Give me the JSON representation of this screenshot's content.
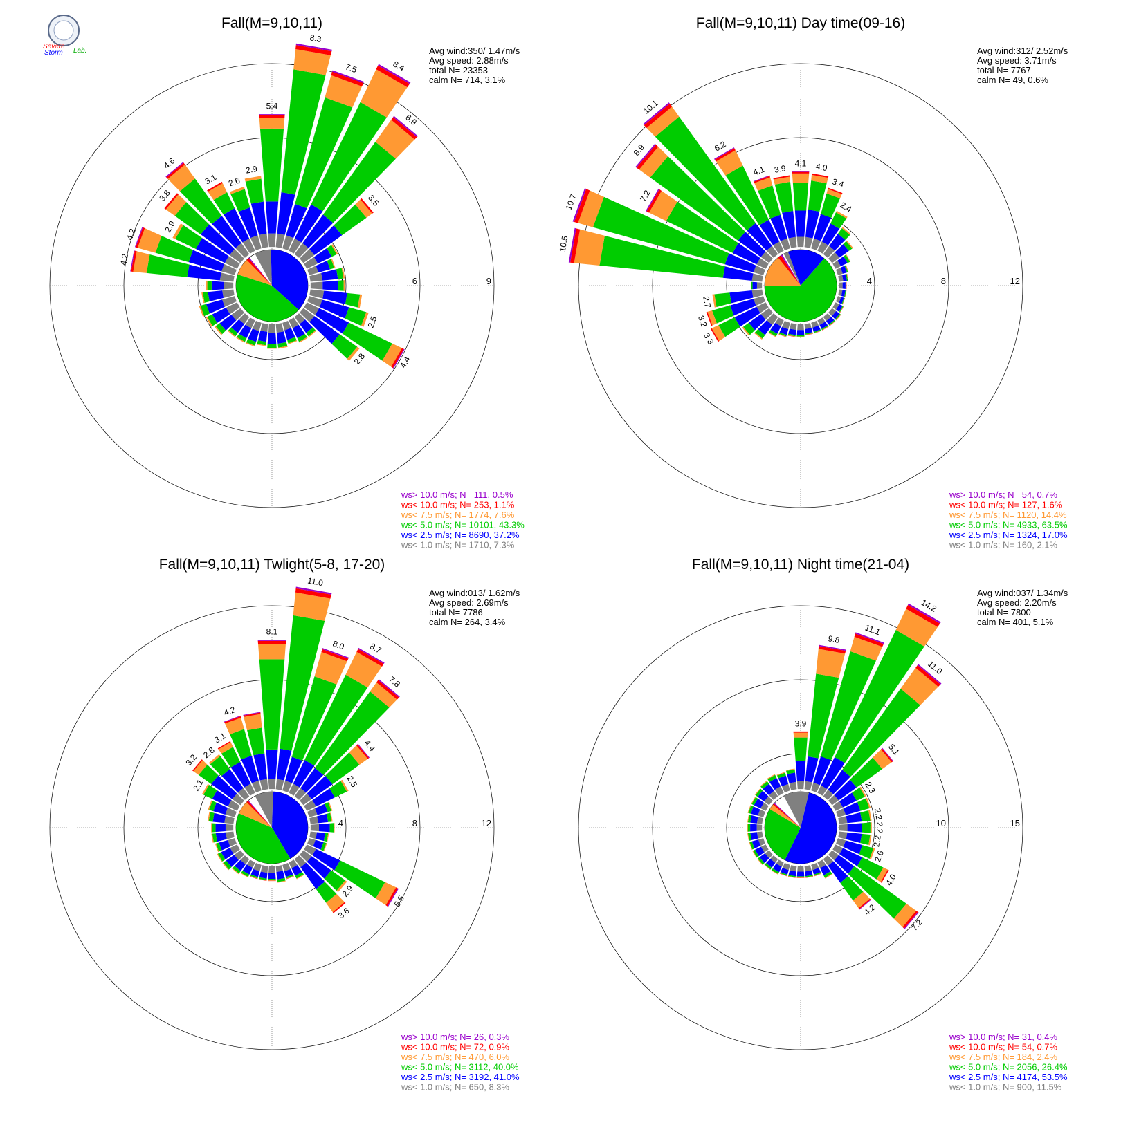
{
  "logo": {
    "text_top": "Severe",
    "text_mid": "Storm",
    "text_lab": "Lab."
  },
  "legend_colors": [
    "#9900cc",
    "#ff0000",
    "#ff9933",
    "#00cc00",
    "#0000ff",
    "#808080"
  ],
  "chart_data": [
    {
      "type": "windrose",
      "title": "Fall(M=9,10,11)",
      "stats": [
        "Avg wind:350/ 1.47m/s",
        "Avg speed: 2.88m/s",
        "total N=      23353",
        "calm N=    714,   3.1%"
      ],
      "rmax": 9,
      "rings": [
        "3",
        "6",
        "9"
      ],
      "legend": [
        "ws> 10.0 m/s; N=   111,  0.5%",
        "ws< 10.0 m/s; N=   253,  1.1%",
        "ws<  7.5 m/s; N=  1774,  7.6%",
        "ws<  5.0 m/s; N= 10101, 43.3%",
        "ws<  2.5 m/s; N=  8690, 37.2%",
        "ws<  1.0 m/s; N=  1710,  7.3%"
      ],
      "pie": [
        7.3,
        37.2,
        43.3,
        7.6,
        1.1,
        0.5
      ],
      "bars": [
        {
          "dir": 0,
          "total": 5.4,
          "label": "5.4"
        },
        {
          "dir": 10,
          "total": 8.3,
          "label": "8.3"
        },
        {
          "dir": 20,
          "total": 7.5,
          "label": "7.5"
        },
        {
          "dir": 30,
          "total": 8.4,
          "label": "8.4"
        },
        {
          "dir": 40,
          "total": 6.9,
          "label": "6.9"
        },
        {
          "dir": 50,
          "total": 3.5,
          "label": "3.5"
        },
        {
          "dir": 60,
          "total": 1.4,
          "label": ""
        },
        {
          "dir": 70,
          "total": 1.1,
          "label": ""
        },
        {
          "dir": 80,
          "total": 1.4,
          "label": ""
        },
        {
          "dir": 90,
          "total": 1.4,
          "label": ""
        },
        {
          "dir": 100,
          "total": 2.1,
          "label": ""
        },
        {
          "dir": 110,
          "total": 2.5,
          "label": "2.5"
        },
        {
          "dir": 120,
          "total": 4.4,
          "label": "4.4"
        },
        {
          "dir": 130,
          "total": 2.8,
          "label": "2.8"
        },
        {
          "dir": 140,
          "total": 1.0,
          "label": ""
        },
        {
          "dir": 150,
          "total": 1.0,
          "label": ""
        },
        {
          "dir": 160,
          "total": 0.9,
          "label": ""
        },
        {
          "dir": 170,
          "total": 1.0,
          "label": ""
        },
        {
          "dir": 180,
          "total": 1.0,
          "label": ""
        },
        {
          "dir": 190,
          "total": 0.9,
          "label": ""
        },
        {
          "dir": 200,
          "total": 1.0,
          "label": ""
        },
        {
          "dir": 210,
          "total": 1.0,
          "label": ""
        },
        {
          "dir": 220,
          "total": 1.0,
          "label": ""
        },
        {
          "dir": 230,
          "total": 1.3,
          "label": ""
        },
        {
          "dir": 240,
          "total": 1.4,
          "label": ""
        },
        {
          "dir": 250,
          "total": 1.5,
          "label": ""
        },
        {
          "dir": 260,
          "total": 1.3,
          "label": ""
        },
        {
          "dir": 270,
          "total": 1.1,
          "label": ""
        },
        {
          "dir": 280,
          "total": 4.2,
          "label": "4.2"
        },
        {
          "dir": 290,
          "total": 4.2,
          "label": "4.2"
        },
        {
          "dir": 300,
          "total": 2.9,
          "label": "2.9"
        },
        {
          "dir": 310,
          "total": 3.8,
          "label": "3.8"
        },
        {
          "dir": 320,
          "total": 4.6,
          "label": "4.6"
        },
        {
          "dir": 330,
          "total": 3.1,
          "label": "3.1"
        },
        {
          "dir": 340,
          "total": 2.6,
          "label": "2.6"
        },
        {
          "dir": 350,
          "total": 2.9,
          "label": "2.9"
        }
      ]
    },
    {
      "type": "windrose",
      "title": "Fall(M=9,10,11) Day time(09-16)",
      "stats": [
        "Avg wind:312/ 2.52m/s",
        "Avg speed: 3.71m/s",
        "total N=       7767",
        "calm N=     49,   0.6%"
      ],
      "rmax": 12,
      "rings": [
        "4",
        "8",
        "12"
      ],
      "legend": [
        "ws> 10.0 m/s; N=    54,  0.7%",
        "ws< 10.0 m/s; N=   127,  1.6%",
        "ws<  7.5 m/s; N=  1120, 14.4%",
        "ws<  5.0 m/s; N=  4933, 63.5%",
        "ws<  2.5 m/s; N=  1324, 17.0%",
        "ws<  1.0 m/s; N=   160,  2.1%"
      ],
      "pie": [
        2.1,
        17.0,
        63.5,
        14.4,
        1.6,
        0.7
      ],
      "bars": [
        {
          "dir": 0,
          "total": 4.1,
          "label": "4.1"
        },
        {
          "dir": 10,
          "total": 4.0,
          "label": "4.0"
        },
        {
          "dir": 20,
          "total": 3.4,
          "label": "3.4"
        },
        {
          "dir": 30,
          "total": 2.4,
          "label": "2.4"
        },
        {
          "dir": 40,
          "total": 1.8,
          "label": ""
        },
        {
          "dir": 50,
          "total": 1.4,
          "label": ""
        },
        {
          "dir": 60,
          "total": 0.9,
          "label": ""
        },
        {
          "dir": 70,
          "total": 0.6,
          "label": ""
        },
        {
          "dir": 80,
          "total": 0.5,
          "label": ""
        },
        {
          "dir": 90,
          "total": 0.4,
          "label": ""
        },
        {
          "dir": 100,
          "total": 0.4,
          "label": ""
        },
        {
          "dir": 110,
          "total": 0.4,
          "label": ""
        },
        {
          "dir": 120,
          "total": 0.5,
          "label": ""
        },
        {
          "dir": 130,
          "total": 0.6,
          "label": ""
        },
        {
          "dir": 140,
          "total": 0.6,
          "label": ""
        },
        {
          "dir": 150,
          "total": 0.6,
          "label": ""
        },
        {
          "dir": 160,
          "total": 0.6,
          "label": ""
        },
        {
          "dir": 170,
          "total": 0.6,
          "label": ""
        },
        {
          "dir": 180,
          "total": 0.7,
          "label": ""
        },
        {
          "dir": 190,
          "total": 0.7,
          "label": ""
        },
        {
          "dir": 200,
          "total": 0.8,
          "label": ""
        },
        {
          "dir": 210,
          "total": 1.0,
          "label": ""
        },
        {
          "dir": 220,
          "total": 1.5,
          "label": ""
        },
        {
          "dir": 230,
          "total": 1.8,
          "label": ""
        },
        {
          "dir": 240,
          "total": 3.3,
          "label": "3.3"
        },
        {
          "dir": 250,
          "total": 3.2,
          "label": "3.2"
        },
        {
          "dir": 260,
          "total": 2.7,
          "label": "2.7"
        },
        {
          "dir": 270,
          "total": 0.6,
          "label": ""
        },
        {
          "dir": 280,
          "total": 10.5,
          "label": "10.5"
        },
        {
          "dir": 290,
          "total": 10.7,
          "label": "10.7"
        },
        {
          "dir": 300,
          "total": 7.2,
          "label": "7.2"
        },
        {
          "dir": 310,
          "total": 8.9,
          "label": "8.9"
        },
        {
          "dir": 320,
          "total": 10.1,
          "label": "10.1"
        },
        {
          "dir": 330,
          "total": 6.2,
          "label": "6.2"
        },
        {
          "dir": 340,
          "total": 4.1,
          "label": "4.1"
        },
        {
          "dir": 350,
          "total": 3.9,
          "label": "3.9"
        }
      ]
    },
    {
      "type": "windrose",
      "title": "Fall(M=9,10,11) Twlight(5-8, 17-20)",
      "stats": [
        "Avg wind:013/ 1.62m/s",
        "Avg speed: 2.69m/s",
        "total N=       7786",
        "calm N=    264,   3.4%"
      ],
      "rmax": 12,
      "rings": [
        "4",
        "8",
        "12"
      ],
      "legend": [
        "ws> 10.0 m/s; N=    26,  0.3%",
        "ws< 10.0 m/s; N=    72,  0.9%",
        "ws<  7.5 m/s; N=   470,  6.0%",
        "ws<  5.0 m/s; N=  3112, 40.0%",
        "ws<  2.5 m/s; N=  3192, 41.0%",
        "ws<  1.0 m/s; N=   650,  8.3%"
      ],
      "pie": [
        8.3,
        41.0,
        40.0,
        6.0,
        0.9,
        0.3
      ],
      "bars": [
        {
          "dir": 0,
          "total": 8.1,
          "label": "8.1"
        },
        {
          "dir": 10,
          "total": 11.0,
          "label": "11.0"
        },
        {
          "dir": 20,
          "total": 8.0,
          "label": "8.0"
        },
        {
          "dir": 30,
          "total": 8.7,
          "label": "8.7"
        },
        {
          "dir": 40,
          "total": 7.8,
          "label": "7.8"
        },
        {
          "dir": 50,
          "total": 4.4,
          "label": "4.4"
        },
        {
          "dir": 60,
          "total": 2.5,
          "label": "2.5"
        },
        {
          "dir": 70,
          "total": 1.3,
          "label": ""
        },
        {
          "dir": 80,
          "total": 1.2,
          "label": ""
        },
        {
          "dir": 90,
          "total": 1.3,
          "label": ""
        },
        {
          "dir": 100,
          "total": 1.0,
          "label": ""
        },
        {
          "dir": 110,
          "total": 1.0,
          "label": ""
        },
        {
          "dir": 120,
          "total": 5.5,
          "label": "5.5"
        },
        {
          "dir": 130,
          "total": 2.9,
          "label": "2.9"
        },
        {
          "dir": 140,
          "total": 3.6,
          "label": "3.6"
        },
        {
          "dir": 150,
          "total": 1.0,
          "label": ""
        },
        {
          "dir": 160,
          "total": 0.8,
          "label": ""
        },
        {
          "dir": 170,
          "total": 0.9,
          "label": ""
        },
        {
          "dir": 180,
          "total": 0.8,
          "label": ""
        },
        {
          "dir": 190,
          "total": 0.8,
          "label": ""
        },
        {
          "dir": 200,
          "total": 0.8,
          "label": ""
        },
        {
          "dir": 210,
          "total": 0.9,
          "label": ""
        },
        {
          "dir": 220,
          "total": 1.0,
          "label": ""
        },
        {
          "dir": 230,
          "total": 1.2,
          "label": ""
        },
        {
          "dir": 240,
          "total": 1.2,
          "label": ""
        },
        {
          "dir": 250,
          "total": 1.1,
          "label": ""
        },
        {
          "dir": 260,
          "total": 1.2,
          "label": ""
        },
        {
          "dir": 270,
          "total": 1.2,
          "label": ""
        },
        {
          "dir": 280,
          "total": 1.4,
          "label": ""
        },
        {
          "dir": 290,
          "total": 1.5,
          "label": ""
        },
        {
          "dir": 300,
          "total": 2.1,
          "label": "2.1"
        },
        {
          "dir": 310,
          "total": 3.2,
          "label": "3.2"
        },
        {
          "dir": 320,
          "total": 2.8,
          "label": "2.8"
        },
        {
          "dir": 330,
          "total": 3.1,
          "label": "3.1"
        },
        {
          "dir": 340,
          "total": 4.2,
          "label": "4.2"
        },
        {
          "dir": 350,
          "total": 4.2,
          "label": ""
        }
      ]
    },
    {
      "type": "windrose",
      "title": "Fall(M=9,10,11) Night time(21-04)",
      "stats": [
        "Avg wind:037/ 1.34m/s",
        "Avg speed: 2.20m/s",
        "total N=       7800",
        "calm N=    401,   5.1%"
      ],
      "rmax": 15,
      "rings": [
        "5",
        "10",
        "15"
      ],
      "legend": [
        "ws> 10.0 m/s; N=    31,  0.4%",
        "ws< 10.0 m/s; N=    54,  0.7%",
        "ws<  7.5 m/s; N=   184,  2.4%",
        "ws<  5.0 m/s; N=  2056, 26.4%",
        "ws<  2.5 m/s; N=  4174, 53.5%",
        "ws<  1.0 m/s; N=   900, 11.5%"
      ],
      "pie": [
        11.5,
        53.5,
        26.4,
        2.4,
        0.7,
        0.4
      ],
      "bars": [
        {
          "dir": 0,
          "total": 3.9,
          "label": "3.9"
        },
        {
          "dir": 10,
          "total": 9.8,
          "label": "9.8"
        },
        {
          "dir": 20,
          "total": 11.1,
          "label": "11.1"
        },
        {
          "dir": 30,
          "total": 14.2,
          "label": "14.2"
        },
        {
          "dir": 40,
          "total": 11.0,
          "label": "11.0"
        },
        {
          "dir": 50,
          "total": 5.1,
          "label": "5.1"
        },
        {
          "dir": 60,
          "total": 2.3,
          "label": "2.3"
        },
        {
          "dir": 70,
          "total": 2.3,
          "label": ""
        },
        {
          "dir": 80,
          "total": 2.2,
          "label": "2.2"
        },
        {
          "dir": 90,
          "total": 2.2,
          "label": "2.2"
        },
        {
          "dir": 100,
          "total": 2.2,
          "label": "2.2"
        },
        {
          "dir": 110,
          "total": 2.6,
          "label": "2.6"
        },
        {
          "dir": 120,
          "total": 4.0,
          "label": "4.0"
        },
        {
          "dir": 130,
          "total": 7.2,
          "label": "7.2"
        },
        {
          "dir": 140,
          "total": 4.2,
          "label": "4.2"
        },
        {
          "dir": 150,
          "total": 1.2,
          "label": ""
        },
        {
          "dir": 160,
          "total": 0.8,
          "label": ""
        },
        {
          "dir": 170,
          "total": 0.8,
          "label": ""
        },
        {
          "dir": 180,
          "total": 0.8,
          "label": ""
        },
        {
          "dir": 190,
          "total": 0.8,
          "label": ""
        },
        {
          "dir": 200,
          "total": 0.8,
          "label": ""
        },
        {
          "dir": 210,
          "total": 0.9,
          "label": ""
        },
        {
          "dir": 220,
          "total": 0.9,
          "label": ""
        },
        {
          "dir": 230,
          "total": 1.0,
          "label": ""
        },
        {
          "dir": 240,
          "total": 1.0,
          "label": ""
        },
        {
          "dir": 250,
          "total": 1.0,
          "label": ""
        },
        {
          "dir": 260,
          "total": 1.0,
          "label": ""
        },
        {
          "dir": 270,
          "total": 1.0,
          "label": ""
        },
        {
          "dir": 280,
          "total": 1.0,
          "label": ""
        },
        {
          "dir": 290,
          "total": 1.1,
          "label": ""
        },
        {
          "dir": 300,
          "total": 1.1,
          "label": ""
        },
        {
          "dir": 310,
          "total": 1.2,
          "label": ""
        },
        {
          "dir": 320,
          "total": 1.3,
          "label": ""
        },
        {
          "dir": 330,
          "total": 1.4,
          "label": ""
        },
        {
          "dir": 340,
          "total": 1.3,
          "label": ""
        },
        {
          "dir": 350,
          "total": 1.4,
          "label": ""
        }
      ]
    }
  ]
}
